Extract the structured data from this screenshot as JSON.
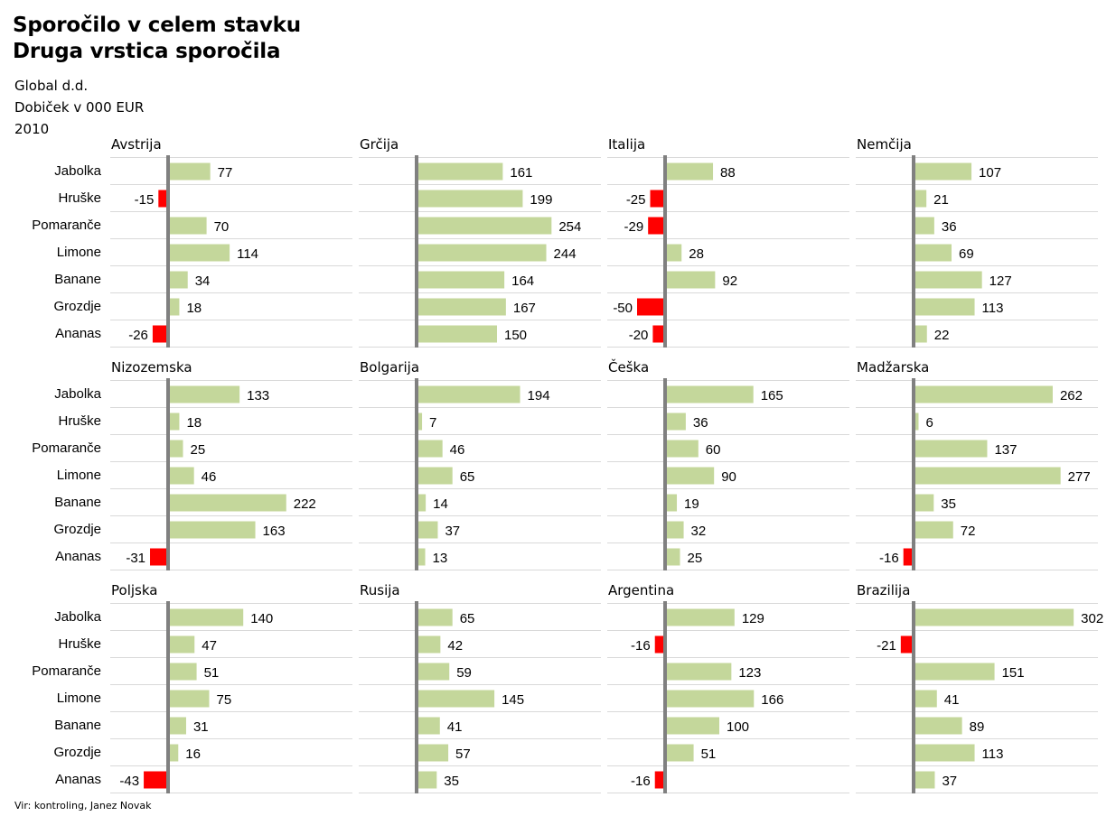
{
  "header": {
    "title_line1": "Sporočilo v celem stavku",
    "title_line2": "Druga vrstica sporočila",
    "company": "Global d.d.",
    "measure": "Dobiček v 000 EUR",
    "year": "2010"
  },
  "footer": {
    "source": "Vir: kontroling, Janez Novak"
  },
  "colors": {
    "positive": "#c4d79b",
    "negative": "#ff0000",
    "axis": "#808080",
    "gridline": "#d9d9d9"
  },
  "chart_data": {
    "type": "bar",
    "orientation": "horizontal",
    "categories": [
      "Jabolka",
      "Hruške",
      "Pomaranče",
      "Limone",
      "Banane",
      "Grozdje",
      "Ananas"
    ],
    "panels": [
      {
        "name": "Avstrija",
        "values": [
          77,
          -15,
          70,
          114,
          34,
          18,
          -26
        ]
      },
      {
        "name": "Grčija",
        "values": [
          161,
          199,
          254,
          244,
          164,
          167,
          150
        ]
      },
      {
        "name": "Italija",
        "values": [
          88,
          -25,
          -29,
          28,
          92,
          -50,
          -20
        ]
      },
      {
        "name": "Nemčija",
        "values": [
          107,
          21,
          36,
          69,
          127,
          113,
          22
        ]
      },
      {
        "name": "Nizozemska",
        "values": [
          133,
          18,
          25,
          46,
          222,
          163,
          -31
        ]
      },
      {
        "name": "Bolgarija",
        "values": [
          194,
          7,
          46,
          65,
          14,
          37,
          13
        ]
      },
      {
        "name": "Češka",
        "values": [
          165,
          36,
          60,
          90,
          19,
          32,
          25
        ]
      },
      {
        "name": "Madžarska",
        "values": [
          262,
          6,
          137,
          277,
          35,
          72,
          -16
        ]
      },
      {
        "name": "Poljska",
        "values": [
          140,
          47,
          51,
          75,
          31,
          16,
          -43
        ]
      },
      {
        "name": "Rusija",
        "values": [
          65,
          42,
          59,
          145,
          41,
          57,
          35
        ]
      },
      {
        "name": "Argentina",
        "values": [
          129,
          -16,
          123,
          166,
          100,
          51,
          -16
        ]
      },
      {
        "name": "Brazilija",
        "values": [
          302,
          -21,
          151,
          41,
          89,
          113,
          37
        ]
      }
    ],
    "grid": true
  }
}
